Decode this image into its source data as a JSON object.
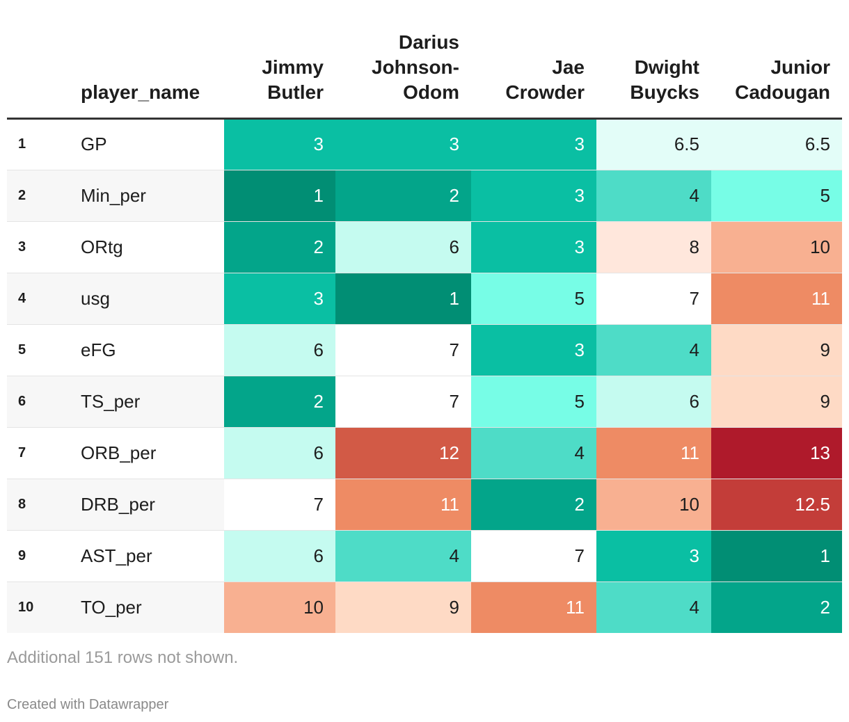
{
  "chart_data": {
    "type": "table",
    "index_header": "",
    "name_header": "player_name",
    "players": [
      {
        "lines": [
          "Jimmy",
          "Butler"
        ]
      },
      {
        "lines": [
          "Darius",
          "Johnson-",
          "Odom"
        ]
      },
      {
        "lines": [
          "Jae",
          "Crowder"
        ]
      },
      {
        "lines": [
          "Dwight",
          "Buycks"
        ]
      },
      {
        "lines": [
          "Junior",
          "Cadougan"
        ]
      }
    ],
    "rows": [
      {
        "index": "1",
        "stat": "GP",
        "values": [
          "3",
          "3",
          "3",
          "6.5",
          "6.5"
        ]
      },
      {
        "index": "2",
        "stat": "Min_per",
        "values": [
          "1",
          "2",
          "3",
          "4",
          "5"
        ]
      },
      {
        "index": "3",
        "stat": "ORtg",
        "values": [
          "2",
          "6",
          "3",
          "8",
          "10"
        ]
      },
      {
        "index": "4",
        "stat": "usg",
        "values": [
          "3",
          "1",
          "5",
          "7",
          "11"
        ]
      },
      {
        "index": "5",
        "stat": "eFG",
        "values": [
          "6",
          "7",
          "3",
          "4",
          "9"
        ]
      },
      {
        "index": "6",
        "stat": "TS_per",
        "values": [
          "2",
          "7",
          "5",
          "6",
          "9"
        ]
      },
      {
        "index": "7",
        "stat": "ORB_per",
        "values": [
          "6",
          "12",
          "4",
          "11",
          "13"
        ]
      },
      {
        "index": "8",
        "stat": "DRB_per",
        "values": [
          "7",
          "11",
          "2",
          "10",
          "12.5"
        ]
      },
      {
        "index": "9",
        "stat": "AST_per",
        "values": [
          "6",
          "4",
          "7",
          "3",
          "1"
        ]
      },
      {
        "index": "10",
        "stat": "TO_per",
        "values": [
          "10",
          "9",
          "11",
          "4",
          "2"
        ]
      }
    ],
    "color_scale": {
      "1": {
        "bg": "#018e74",
        "fg": "#ffffff"
      },
      "2": {
        "bg": "#03a58a",
        "fg": "#ffffff"
      },
      "3": {
        "bg": "#0abfa3",
        "fg": "#ffffff"
      },
      "4": {
        "bg": "#4edcc7",
        "fg": "#1d1d1d"
      },
      "5": {
        "bg": "#77fde6",
        "fg": "#1d1d1d"
      },
      "6": {
        "bg": "#c5fbf0",
        "fg": "#1d1d1d"
      },
      "6.5": {
        "bg": "#e3fdf8",
        "fg": "#1d1d1d"
      },
      "7": {
        "bg": "#ffffff",
        "fg": "#1d1d1d"
      },
      "8": {
        "bg": "#ffe7dc",
        "fg": "#1d1d1d"
      },
      "9": {
        "bg": "#fedac5",
        "fg": "#1d1d1d"
      },
      "10": {
        "bg": "#f8b091",
        "fg": "#1d1d1d"
      },
      "11": {
        "bg": "#ee8b64",
        "fg": "#ffffff"
      },
      "12": {
        "bg": "#d25a46",
        "fg": "#ffffff"
      },
      "12.5": {
        "bg": "#c33d39",
        "fg": "#ffffff"
      },
      "13": {
        "bg": "#af1a2b",
        "fg": "#ffffff"
      }
    }
  },
  "footer": {
    "note": "Additional 151 rows not shown.",
    "credit": "Created with Datawrapper"
  }
}
